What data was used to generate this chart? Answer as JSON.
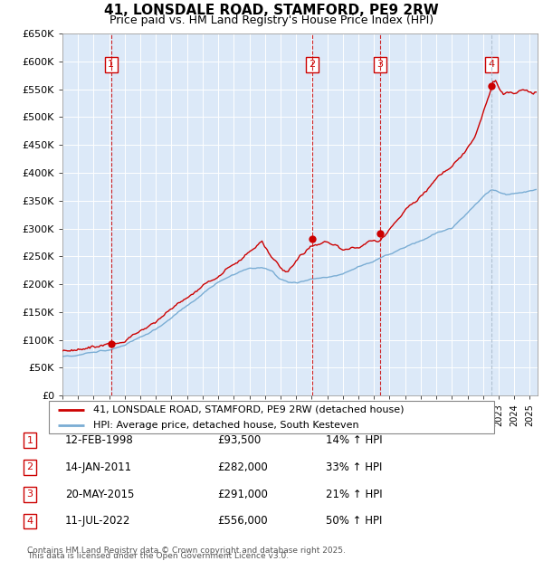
{
  "title": "41, LONSDALE ROAD, STAMFORD, PE9 2RW",
  "subtitle": "Price paid vs. HM Land Registry's House Price Index (HPI)",
  "ylim": [
    0,
    650000
  ],
  "yticks": [
    0,
    50000,
    100000,
    150000,
    200000,
    250000,
    300000,
    350000,
    400000,
    450000,
    500000,
    550000,
    600000,
    650000
  ],
  "ytick_labels": [
    "£0",
    "£50K",
    "£100K",
    "£150K",
    "£200K",
    "£250K",
    "£300K",
    "£350K",
    "£400K",
    "£450K",
    "£500K",
    "£550K",
    "£600K",
    "£650K"
  ],
  "xlim_start": 1995.0,
  "xlim_end": 2025.5,
  "plot_bg_color": "#dce9f8",
  "grid_color": "#ffffff",
  "red_color": "#cc0000",
  "blue_color": "#7aadd4",
  "transactions": [
    {
      "num": 1,
      "date": "12-FEB-1998",
      "price": 93500,
      "hpi_text": "14% ↑ HPI",
      "year": 1998.12
    },
    {
      "num": 2,
      "date": "14-JAN-2011",
      "price": 282000,
      "hpi_text": "33% ↑ HPI",
      "year": 2011.04
    },
    {
      "num": 3,
      "date": "20-MAY-2015",
      "price": 291000,
      "hpi_text": "21% ↑ HPI",
      "year": 2015.38
    },
    {
      "num": 4,
      "date": "11-JUL-2022",
      "price": 556000,
      "hpi_text": "50% ↑ HPI",
      "year": 2022.53
    }
  ],
  "legend_line1": "41, LONSDALE ROAD, STAMFORD, PE9 2RW (detached house)",
  "legend_line2": "HPI: Average price, detached house, South Kesteven",
  "footer1": "Contains HM Land Registry data © Crown copyright and database right 2025.",
  "footer2": "This data is licensed under the Open Government Licence v3.0."
}
